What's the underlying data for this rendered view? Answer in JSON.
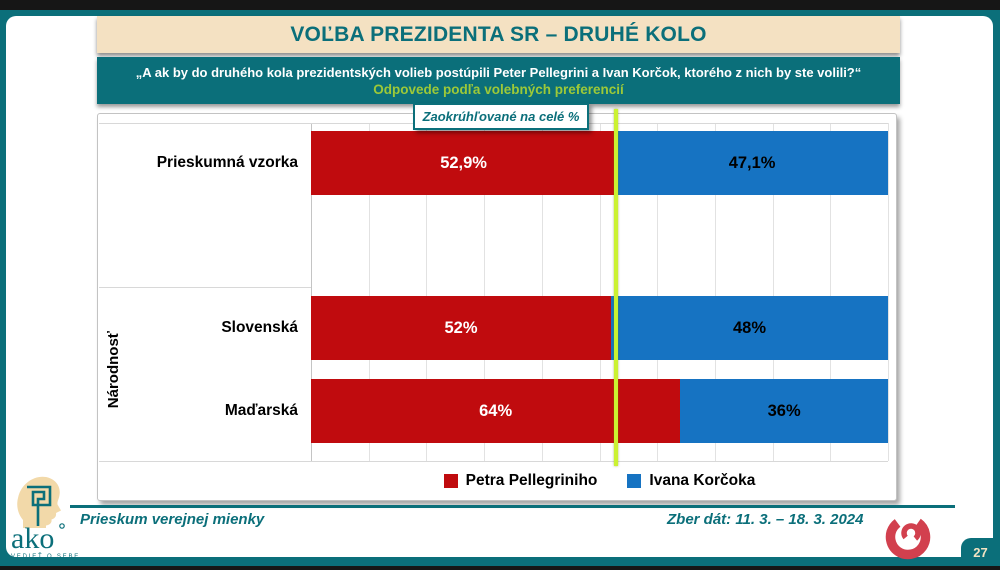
{
  "slide": {
    "title": "VOĽBA PREZIDENTA SR – DRUHÉ KOLO",
    "question": "„A ak by do druhého kola prezidentských volieb postúpili Peter Pellegrini a Ivan Korčok, ktorého z nich by ste volili?“",
    "subtitle": "Odpovede podľa volebných preferencií",
    "note": "Zaokrúhľované na celé %",
    "page_number": "27"
  },
  "chart_data": {
    "type": "bar",
    "orientation": "horizontal",
    "stacked": true,
    "categories": [
      "Prieskumná vzorka",
      "Slovenská",
      "Maďarská"
    ],
    "group_axis_label": "Národnosť",
    "groups": [
      {
        "label": "",
        "categories": [
          "Prieskumná vzorka"
        ]
      },
      {
        "label": "Národnosť",
        "categories": [
          "Slovenská",
          "Maďarská"
        ]
      }
    ],
    "series": [
      {
        "name": "Petra Pellegriniho",
        "color": "#C00B0E",
        "label_color": "#FFFFFF",
        "values": [
          52.9,
          52,
          64
        ],
        "labels": [
          "52,9%",
          "52%",
          "64%"
        ]
      },
      {
        "name": "Ivana Korčoka",
        "color": "#1673C2",
        "label_color": "#000000",
        "values": [
          47.1,
          48,
          36
        ],
        "labels": [
          "47,1%",
          "48%",
          "36%"
        ]
      }
    ],
    "xlim": [
      0,
      100
    ],
    "gridline_step_pct": 10,
    "grid": true,
    "reference_line_pct": 52.9,
    "reference_line_color": "#CBF231",
    "legend_position": "bottom"
  },
  "footer": {
    "left_text": "Prieskum verejnej mienky",
    "right_text": "Zber dát: 11. 3. – 18. 3. 2024",
    "logo_text": "ako",
    "logo_tagline": "VEDIEŤ O SEBE"
  },
  "colors": {
    "teal": "#0B6F7A",
    "beige": "#F4E1C2",
    "red": "#C00B0E",
    "blue": "#1673C2",
    "highlight_green": "#9DC938",
    "reference_line": "#CBF231",
    "spiral_logo": "#D2404E"
  }
}
